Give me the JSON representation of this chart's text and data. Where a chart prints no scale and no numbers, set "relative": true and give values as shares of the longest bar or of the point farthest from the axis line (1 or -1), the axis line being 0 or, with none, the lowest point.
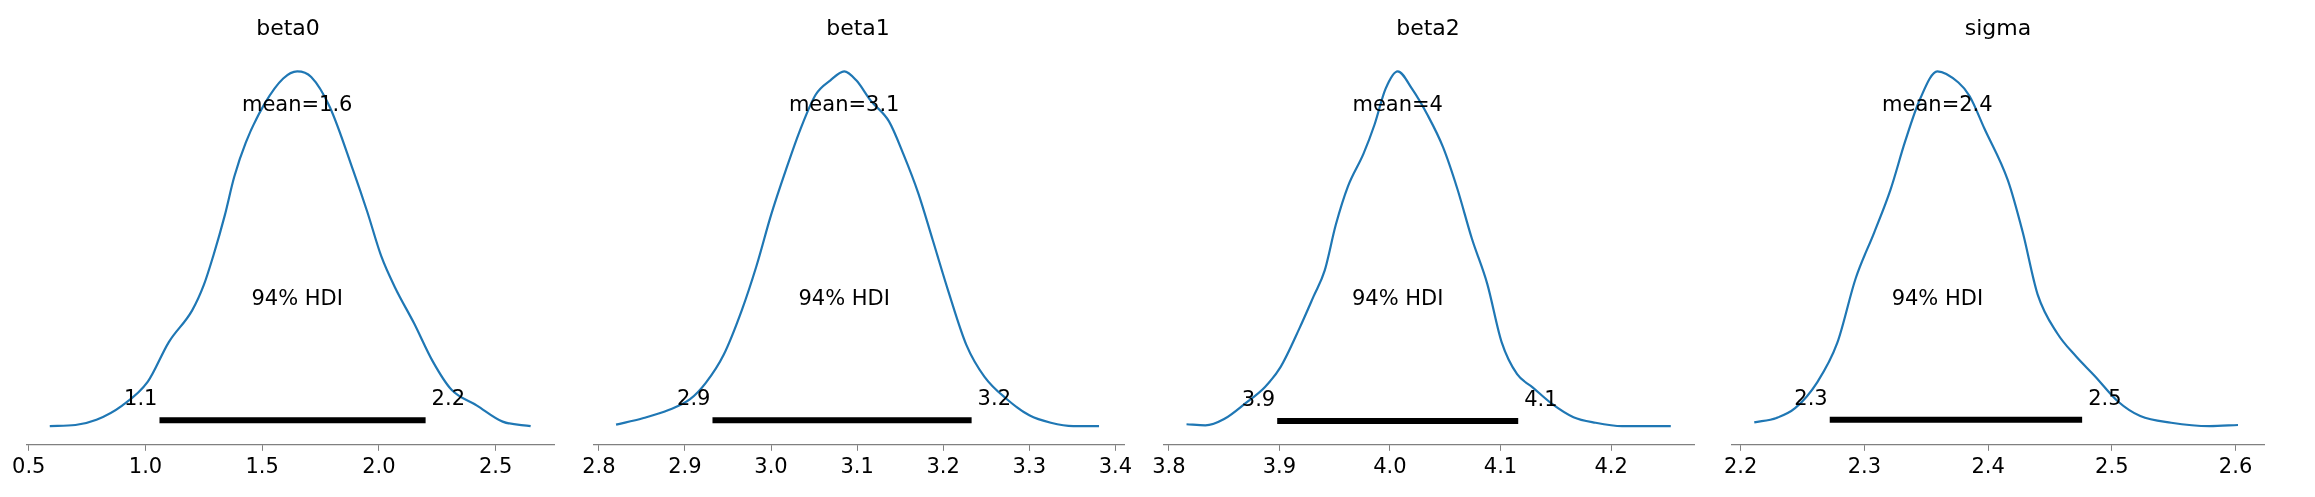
{
  "chart_data": [
    {
      "type": "line",
      "title": "beta0",
      "relative": true,
      "grid": false,
      "legend": false,
      "series": [
        {
          "color": "#1f77b4",
          "x": [
            0.59,
            0.7,
            0.79,
            0.9,
            1.01,
            1.1,
            1.2,
            1.25,
            1.29,
            1.34,
            1.38,
            1.43,
            1.51,
            1.59,
            1.65,
            1.71,
            1.79,
            1.89,
            1.95,
            2.01,
            2.07,
            2.15,
            2.23,
            2.31,
            2.42,
            2.53,
            2.65
          ],
          "values": [
            0.05,
            0.053,
            0.067,
            0.105,
            0.169,
            0.275,
            0.36,
            0.428,
            0.505,
            0.615,
            0.717,
            0.81,
            0.913,
            0.981,
            1,
            0.985,
            0.904,
            0.734,
            0.624,
            0.505,
            0.42,
            0.326,
            0.224,
            0.148,
            0.105,
            0.062,
            0.05
          ]
        },
        {
          "color": "#000000",
          "x": [
            1.06,
            2.2
          ],
          "values": [
            0.066,
            0.066
          ]
        }
      ],
      "xlim": [
        0.49,
        2.75
      ],
      "xticks": [
        0.5,
        {
          "value": 1,
          "label": "1.0"
        },
        1.5,
        {
          "value": 2,
          "label": "2.0"
        },
        2.5
      ],
      "annotations": [
        "mean=1.6",
        "94% HDI",
        {
          "text": "1.1",
          "x": 1.06,
          "y": 0.066
        },
        {
          "text": "2.2",
          "x": 2.2,
          "y": 0.066
        }
      ]
    },
    {
      "type": "line",
      "title": "beta1",
      "relative": true,
      "grid": false,
      "legend": false,
      "series": [
        {
          "color": "#1f77b4",
          "x": [
            2.82,
            2.851,
            2.881,
            2.906,
            2.924,
            2.945,
            2.966,
            2.983,
            3.0,
            3.017,
            3.034,
            3.052,
            3.069,
            3.085,
            3.099,
            3.116,
            3.137,
            3.154,
            3.171,
            3.188,
            3.206,
            3.227,
            3.248,
            3.274,
            3.3,
            3.325,
            3.351,
            3.381
          ],
          "values": [
            0.054,
            0.071,
            0.093,
            0.122,
            0.165,
            0.241,
            0.36,
            0.478,
            0.615,
            0.734,
            0.844,
            0.938,
            0.976,
            1,
            0.976,
            0.921,
            0.866,
            0.777,
            0.674,
            0.547,
            0.411,
            0.267,
            0.182,
            0.122,
            0.079,
            0.059,
            0.05,
            0.05
          ]
        },
        {
          "color": "#000000",
          "x": [
            2.932,
            3.233
          ],
          "values": [
            0.066,
            0.066
          ]
        }
      ],
      "xlim": [
        2.794,
        3.41
      ],
      "xticks": [
        2.8,
        2.9,
        {
          "value": 3,
          "label": "3.0"
        },
        3.1,
        3.2,
        3.3,
        3.4
      ],
      "annotations": [
        "mean=3.1",
        "94% HDI",
        {
          "text": "2.9",
          "x": 2.932,
          "y": 0.066
        },
        {
          "text": "3.2",
          "x": 3.233,
          "y": 0.066
        }
      ]
    },
    {
      "type": "line",
      "title": "beta2",
      "relative": true,
      "grid": false,
      "legend": false,
      "series": [
        {
          "color": "#1f77b4",
          "x": [
            3.816,
            3.833,
            3.85,
            3.87,
            3.887,
            3.901,
            3.918,
            3.931,
            3.941,
            3.951,
            3.962,
            3.976,
            3.986,
            3.996,
            4.007,
            4.02,
            4.034,
            4.048,
            4.061,
            4.074,
            4.088,
            4.101,
            4.115,
            4.129,
            4.146,
            4.166,
            4.186,
            4.21,
            4.254
          ],
          "values": [
            0.055,
            0.052,
            0.069,
            0.113,
            0.155,
            0.208,
            0.311,
            0.398,
            0.467,
            0.589,
            0.692,
            0.779,
            0.857,
            0.953,
            1,
            0.953,
            0.883,
            0.797,
            0.685,
            0.553,
            0.431,
            0.275,
            0.189,
            0.154,
            0.111,
            0.074,
            0.059,
            0.05,
            0.05
          ]
        },
        {
          "color": "#000000",
          "x": [
            3.898,
            4.116
          ],
          "values": [
            0.064,
            0.064
          ]
        }
      ],
      "xlim": [
        3.795,
        4.275
      ],
      "xticks": [
        3.8,
        3.9,
        {
          "value": 4,
          "label": "4.0"
        },
        4.1,
        4.2
      ],
      "annotations": [
        "mean=4",
        "94% HDI",
        {
          "text": "3.9",
          "x": 3.898,
          "y": 0.064
        },
        {
          "text": "4.1",
          "x": 4.116,
          "y": 0.064
        }
      ]
    },
    {
      "type": "line",
      "title": "sigma",
      "relative": true,
      "grid": false,
      "legend": false,
      "series": [
        {
          "color": "#1f77b4",
          "x": [
            2.211,
            2.229,
            2.244,
            2.262,
            2.278,
            2.293,
            2.308,
            2.321,
            2.333,
            2.345,
            2.359,
            2.376,
            2.385,
            2.397,
            2.416,
            2.428,
            2.44,
            2.456,
            2.471,
            2.486,
            2.505,
            2.523,
            2.548,
            2.579,
            2.602
          ],
          "values": [
            0.06,
            0.072,
            0.098,
            0.168,
            0.272,
            0.446,
            0.569,
            0.682,
            0.813,
            0.926,
            1,
            0.97,
            0.934,
            0.847,
            0.708,
            0.569,
            0.403,
            0.298,
            0.237,
            0.185,
            0.116,
            0.077,
            0.059,
            0.05,
            0.053
          ]
        },
        {
          "color": "#000000",
          "x": [
            2.272,
            2.476
          ],
          "values": [
            0.067,
            0.067
          ]
        }
      ],
      "xlim": [
        2.193,
        2.623
      ],
      "xticks": [
        2.2,
        2.3,
        2.4,
        2.5,
        2.6
      ],
      "annotations": [
        "mean=2.4",
        "94% HDI",
        {
          "text": "2.3",
          "x": 2.272,
          "y": 0.067
        },
        {
          "text": "2.5",
          "x": 2.476,
          "y": 0.067
        }
      ]
    }
  ]
}
